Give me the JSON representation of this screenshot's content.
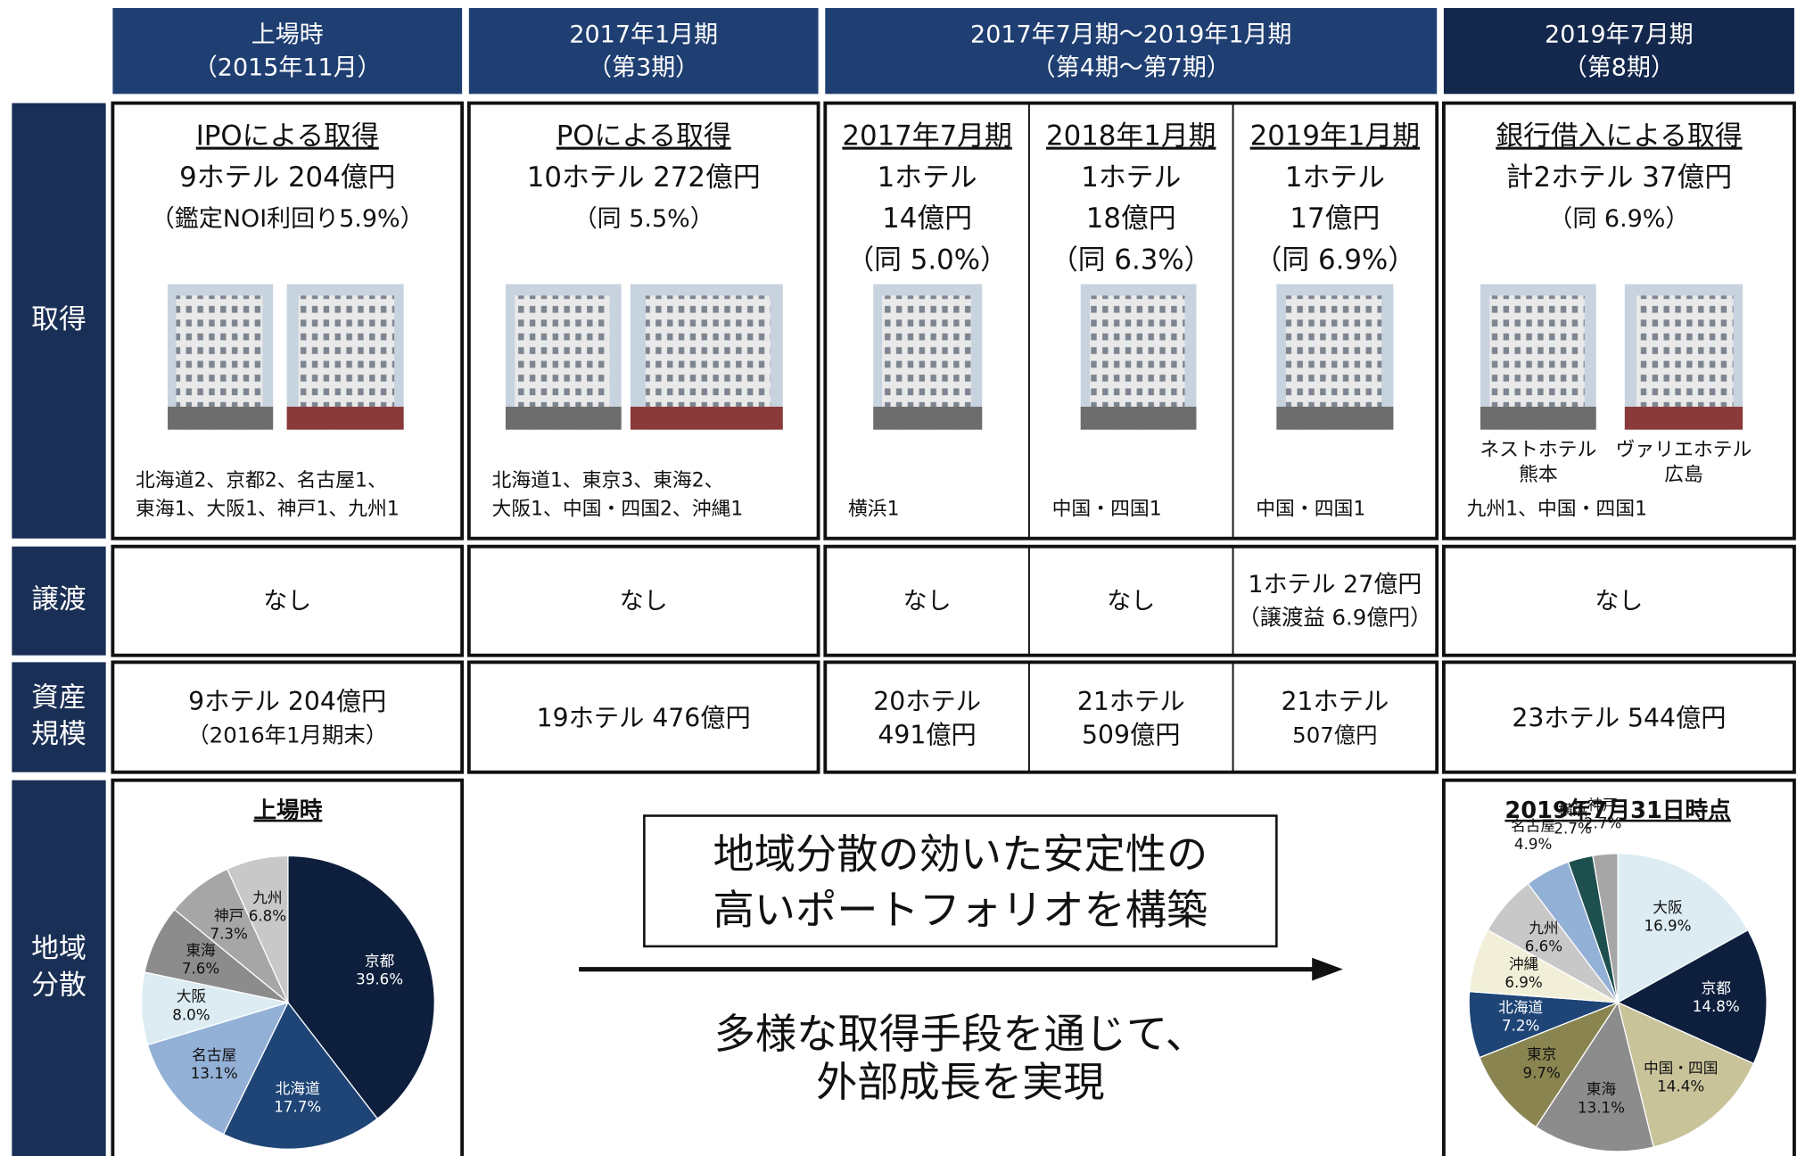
{
  "columns": [
    {
      "line1": "上場時",
      "line2": "（2015年11月）"
    },
    {
      "line1": "2017年1月期",
      "line2": "（第3期）"
    },
    {
      "line1": "2017年7月期～2019年1月期",
      "line2": "（第4期～第7期）"
    },
    {
      "line1": "2019年7月期",
      "line2": "（第8期）"
    }
  ],
  "row_labels": [
    [
      "取得"
    ],
    [
      "譲渡"
    ],
    [
      "資産",
      "規模"
    ],
    [
      "地域",
      "分散"
    ]
  ],
  "acquisition": [
    {
      "title": "IPOによる取得",
      "lines": [
        "9ホテル 204億円",
        "（鑑定NOI利回り5.9%）"
      ],
      "regions": [
        "北海道2、京都2、名古屋1、",
        "東海1、大阪1、神戸1、九州1"
      ]
    },
    {
      "title": "POによる取得",
      "lines": [
        "10ホテル 272億円",
        "（同 5.5%）"
      ],
      "regions": [
        "北海道1、東京3、東海2、",
        "大阪1、中国・四国2、沖縄1"
      ]
    },
    {
      "title": "2017年7月期",
      "lines": [
        "1ホテル",
        "14億円",
        "（同 5.0%）"
      ],
      "regions": [
        "横浜1"
      ]
    },
    {
      "title": "2018年1月期",
      "lines": [
        "1ホテル",
        "18億円",
        "（同 6.3%）"
      ],
      "regions": [
        "中国・四国1"
      ]
    },
    {
      "title": "2019年1月期",
      "lines": [
        "1ホテル",
        "17億円",
        "（同 6.9%）"
      ],
      "regions": [
        "中国・四国1"
      ]
    },
    {
      "title": "銀行借入による取得",
      "lines": [
        "計2ホテル 37億円",
        "（同 6.9%）"
      ],
      "captions": [
        [
          "ネストホテル",
          "熊本"
        ],
        [
          "ヴァリエホテル",
          "広島"
        ]
      ],
      "regions": [
        "九州1、中国・四国1"
      ]
    }
  ],
  "disposal": [
    [
      "なし"
    ],
    [
      "なし"
    ],
    [
      "なし"
    ],
    [
      "なし"
    ],
    [
      "1ホテル 27億円",
      "（譲渡益 6.9億円）"
    ],
    [
      "なし"
    ]
  ],
  "asset_size": [
    [
      "9ホテル 204億円",
      "（2016年1月期末）"
    ],
    [
      "19ホテル 476億円"
    ],
    [
      "20ホテル",
      "491億円"
    ],
    [
      "21ホテル",
      "509億円"
    ],
    [
      "21ホテル",
      "507億円"
    ],
    [
      "23ホテル 544億円"
    ]
  ],
  "message": {
    "box": [
      "地域分散の効いた安定性の",
      "高いポートフォリオを構築"
    ],
    "bottom": [
      "多様な取得手段を通じて、",
      "外部成長を実現"
    ]
  },
  "pies": [
    {
      "type": "pie",
      "title": "上場時",
      "slices": [
        {
          "name": "京都",
          "value": 39.6,
          "label": "39.6%",
          "color": "#0e1f3d"
        },
        {
          "name": "北海道",
          "value": 17.7,
          "label": "17.7%",
          "color": "#1f4577"
        },
        {
          "name": "名古屋",
          "value": 13.1,
          "label": "13.1%",
          "color": "#93b0d6"
        },
        {
          "name": "大阪",
          "value": 8.0,
          "label": "8.0%",
          "color": "#dcecf2"
        },
        {
          "name": "東海",
          "value": 7.6,
          "label": "7.6%",
          "color": "#8c8c8c"
        },
        {
          "name": "神戸",
          "value": 7.3,
          "label": "7.3%",
          "color": "#a6a6a6"
        },
        {
          "name": "九州",
          "value": 6.8,
          "label": "6.8%",
          "color": "#c8c8c8"
        }
      ]
    },
    {
      "type": "pie",
      "title": "2019年7月31日時点",
      "slices": [
        {
          "name": "大阪",
          "value": 16.9,
          "label": "16.9%",
          "color": "#dcecf2"
        },
        {
          "name": "京都",
          "value": 14.8,
          "label": "14.8%",
          "color": "#0e1f3d"
        },
        {
          "name": "中国・四国",
          "value": 14.4,
          "label": "14.4%",
          "color": "#c9c39a"
        },
        {
          "name": "東海",
          "value": 13.1,
          "label": "13.1%",
          "color": "#8c8c8c"
        },
        {
          "name": "東京",
          "value": 9.7,
          "label": "9.7%",
          "color": "#8a8550"
        },
        {
          "name": "北海道",
          "value": 7.2,
          "label": "7.2%",
          "color": "#1f4577"
        },
        {
          "name": "沖縄",
          "value": 6.9,
          "label": "6.9%",
          "color": "#f2efd9"
        },
        {
          "name": "九州",
          "value": 6.6,
          "label": "6.6%",
          "color": "#c8c8c8"
        },
        {
          "name": "名古屋",
          "value": 4.9,
          "label": "4.9%",
          "color": "#93b0d6"
        },
        {
          "name": "横浜",
          "value": 2.7,
          "label": "2.7%",
          "color": "#1e4f4f"
        },
        {
          "name": "神戸",
          "value": 2.7,
          "label": "2.7%",
          "color": "#a6a6a6"
        }
      ]
    }
  ]
}
